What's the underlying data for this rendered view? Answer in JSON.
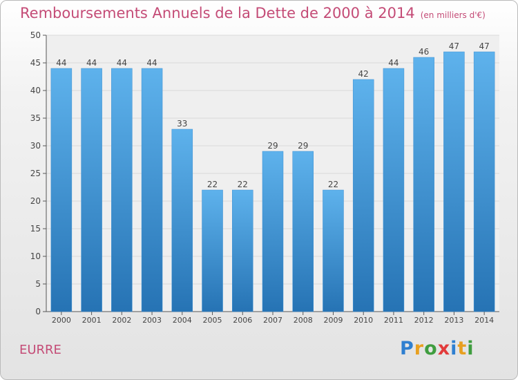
{
  "header": {
    "title": "Remboursements Annuels de la Dette de 2000 à 2014",
    "subtitle": "(en milliers d'€)"
  },
  "footer": {
    "commune": "EURRE",
    "brand": "Proxiti",
    "brand_letters": [
      {
        "ch": "P",
        "color": "#2e7fd0"
      },
      {
        "ch": "r",
        "color": "#e8a020"
      },
      {
        "ch": "o",
        "color": "#3f9d3f"
      },
      {
        "ch": "x",
        "color": "#e23b3b"
      },
      {
        "ch": "i",
        "color": "#2e7fd0"
      },
      {
        "ch": "t",
        "color": "#e8a020"
      },
      {
        "ch": "i",
        "color": "#3f9d3f"
      }
    ]
  },
  "colors": {
    "title": "#c44b76",
    "bar_top": "#5eb2ec",
    "bar_bottom": "#2673b4",
    "grid": "#dadada"
  },
  "chart_data": {
    "type": "bar",
    "title": "Remboursements Annuels de la Dette de 2000 à 2014",
    "subtitle": "(en milliers d'€)",
    "categories": [
      "2000",
      "2001",
      "2002",
      "2003",
      "2004",
      "2005",
      "2006",
      "2007",
      "2008",
      "2009",
      "2010",
      "2011",
      "2012",
      "2013",
      "2014"
    ],
    "values": [
      44,
      44,
      44,
      44,
      33,
      22,
      22,
      29,
      29,
      22,
      42,
      44,
      46,
      47,
      47
    ],
    "xlabel": "",
    "ylabel": "",
    "ylim": [
      0,
      50
    ],
    "yticks": [
      0,
      5,
      10,
      15,
      20,
      25,
      30,
      35,
      40,
      45,
      50
    ],
    "grid": true,
    "data_labels": true
  }
}
